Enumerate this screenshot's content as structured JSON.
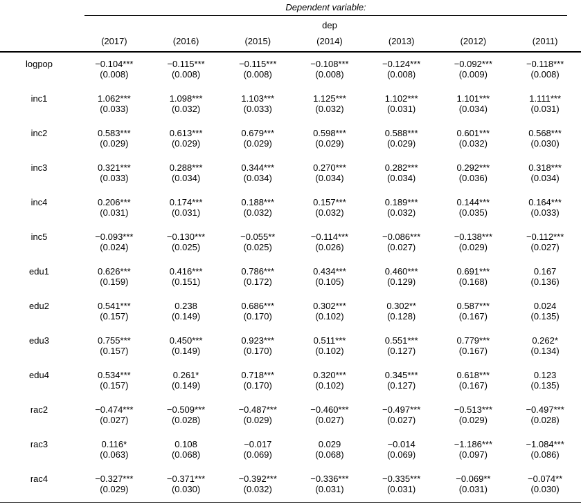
{
  "header": {
    "dependent_variable": "Dependent variable:",
    "dep_label": "dep",
    "years": [
      "(2017)",
      "(2016)",
      "(2015)",
      "(2014)",
      "(2013)",
      "(2012)",
      "(2011)"
    ]
  },
  "colors": {
    "text": "#000000",
    "rule": "#000000",
    "background": "#ffffff"
  },
  "rows": [
    {
      "label": "logpop",
      "cells": [
        {
          "est": "−0.104***",
          "se": "(0.008)"
        },
        {
          "est": "−0.115***",
          "se": "(0.008)"
        },
        {
          "est": "−0.115***",
          "se": "(0.008)"
        },
        {
          "est": "−0.108***",
          "se": "(0.008)"
        },
        {
          "est": "−0.124***",
          "se": "(0.008)"
        },
        {
          "est": "−0.092***",
          "se": "(0.009)"
        },
        {
          "est": "−0.118***",
          "se": "(0.008)"
        }
      ]
    },
    {
      "label": "inc1",
      "cells": [
        {
          "est": "1.062***",
          "se": "(0.033)"
        },
        {
          "est": "1.098***",
          "se": "(0.032)"
        },
        {
          "est": "1.103***",
          "se": "(0.033)"
        },
        {
          "est": "1.125***",
          "se": "(0.032)"
        },
        {
          "est": "1.102***",
          "se": "(0.031)"
        },
        {
          "est": "1.101***",
          "se": "(0.034)"
        },
        {
          "est": "1.111***",
          "se": "(0.031)"
        }
      ]
    },
    {
      "label": "inc2",
      "cells": [
        {
          "est": "0.583***",
          "se": "(0.029)"
        },
        {
          "est": "0.613***",
          "se": "(0.029)"
        },
        {
          "est": "0.679***",
          "se": "(0.029)"
        },
        {
          "est": "0.598***",
          "se": "(0.029)"
        },
        {
          "est": "0.588***",
          "se": "(0.029)"
        },
        {
          "est": "0.601***",
          "se": "(0.032)"
        },
        {
          "est": "0.568***",
          "se": "(0.030)"
        }
      ]
    },
    {
      "label": "inc3",
      "cells": [
        {
          "est": "0.321***",
          "se": "(0.033)"
        },
        {
          "est": "0.288***",
          "se": "(0.034)"
        },
        {
          "est": "0.344***",
          "se": "(0.034)"
        },
        {
          "est": "0.270***",
          "se": "(0.034)"
        },
        {
          "est": "0.282***",
          "se": "(0.034)"
        },
        {
          "est": "0.292***",
          "se": "(0.036)"
        },
        {
          "est": "0.318***",
          "se": "(0.034)"
        }
      ]
    },
    {
      "label": "inc4",
      "cells": [
        {
          "est": "0.206***",
          "se": "(0.031)"
        },
        {
          "est": "0.174***",
          "se": "(0.031)"
        },
        {
          "est": "0.188***",
          "se": "(0.032)"
        },
        {
          "est": "0.157***",
          "se": "(0.032)"
        },
        {
          "est": "0.189***",
          "se": "(0.032)"
        },
        {
          "est": "0.144***",
          "se": "(0.035)"
        },
        {
          "est": "0.164***",
          "se": "(0.033)"
        }
      ]
    },
    {
      "label": "inc5",
      "cells": [
        {
          "est": "−0.093***",
          "se": "(0.024)"
        },
        {
          "est": "−0.130***",
          "se": "(0.025)"
        },
        {
          "est": "−0.055**",
          "se": "(0.025)"
        },
        {
          "est": "−0.114***",
          "se": "(0.026)"
        },
        {
          "est": "−0.086***",
          "se": "(0.027)"
        },
        {
          "est": "−0.138***",
          "se": "(0.029)"
        },
        {
          "est": "−0.112***",
          "se": "(0.027)"
        }
      ]
    },
    {
      "label": "edu1",
      "cells": [
        {
          "est": "0.626***",
          "se": "(0.159)"
        },
        {
          "est": "0.416***",
          "se": "(0.151)"
        },
        {
          "est": "0.786***",
          "se": "(0.172)"
        },
        {
          "est": "0.434***",
          "se": "(0.105)"
        },
        {
          "est": "0.460***",
          "se": "(0.129)"
        },
        {
          "est": "0.691***",
          "se": "(0.168)"
        },
        {
          "est": "0.167",
          "se": "(0.136)"
        }
      ]
    },
    {
      "label": "edu2",
      "cells": [
        {
          "est": "0.541***",
          "se": "(0.157)"
        },
        {
          "est": "0.238",
          "se": "(0.149)"
        },
        {
          "est": "0.686***",
          "se": "(0.170)"
        },
        {
          "est": "0.302***",
          "se": "(0.102)"
        },
        {
          "est": "0.302**",
          "se": "(0.128)"
        },
        {
          "est": "0.587***",
          "se": "(0.167)"
        },
        {
          "est": "0.024",
          "se": "(0.135)"
        }
      ]
    },
    {
      "label": "edu3",
      "cells": [
        {
          "est": "0.755***",
          "se": "(0.157)"
        },
        {
          "est": "0.450***",
          "se": "(0.149)"
        },
        {
          "est": "0.923***",
          "se": "(0.170)"
        },
        {
          "est": "0.511***",
          "se": "(0.102)"
        },
        {
          "est": "0.551***",
          "se": "(0.127)"
        },
        {
          "est": "0.779***",
          "se": "(0.167)"
        },
        {
          "est": "0.262*",
          "se": "(0.134)"
        }
      ]
    },
    {
      "label": "edu4",
      "cells": [
        {
          "est": "0.534***",
          "se": "(0.157)"
        },
        {
          "est": "0.261*",
          "se": "(0.149)"
        },
        {
          "est": "0.718***",
          "se": "(0.170)"
        },
        {
          "est": "0.320***",
          "se": "(0.102)"
        },
        {
          "est": "0.345***",
          "se": "(0.127)"
        },
        {
          "est": "0.618***",
          "se": "(0.167)"
        },
        {
          "est": "0.123",
          "se": "(0.135)"
        }
      ]
    },
    {
      "label": "rac2",
      "cells": [
        {
          "est": "−0.474***",
          "se": "(0.027)"
        },
        {
          "est": "−0.509***",
          "se": "(0.028)"
        },
        {
          "est": "−0.487***",
          "se": "(0.029)"
        },
        {
          "est": "−0.460***",
          "se": "(0.027)"
        },
        {
          "est": "−0.497***",
          "se": "(0.027)"
        },
        {
          "est": "−0.513***",
          "se": "(0.029)"
        },
        {
          "est": "−0.497***",
          "se": "(0.028)"
        }
      ]
    },
    {
      "label": "rac3",
      "cells": [
        {
          "est": "0.116*",
          "se": "(0.063)"
        },
        {
          "est": "0.108",
          "se": "(0.068)"
        },
        {
          "est": "−0.017",
          "se": "(0.069)"
        },
        {
          "est": "0.029",
          "se": "(0.068)"
        },
        {
          "est": "−0.014",
          "se": "(0.069)"
        },
        {
          "est": "−1.186***",
          "se": "(0.097)"
        },
        {
          "est": "−1.084***",
          "se": "(0.086)"
        }
      ]
    },
    {
      "label": "rac4",
      "cells": [
        {
          "est": "−0.327***",
          "se": "(0.029)"
        },
        {
          "est": "−0.371***",
          "se": "(0.030)"
        },
        {
          "est": "−0.392***",
          "se": "(0.032)"
        },
        {
          "est": "−0.336***",
          "se": "(0.031)"
        },
        {
          "est": "−0.335***",
          "se": "(0.031)"
        },
        {
          "est": "−0.069**",
          "se": "(0.031)"
        },
        {
          "est": "−0.074**",
          "se": "(0.030)"
        }
      ]
    }
  ]
}
